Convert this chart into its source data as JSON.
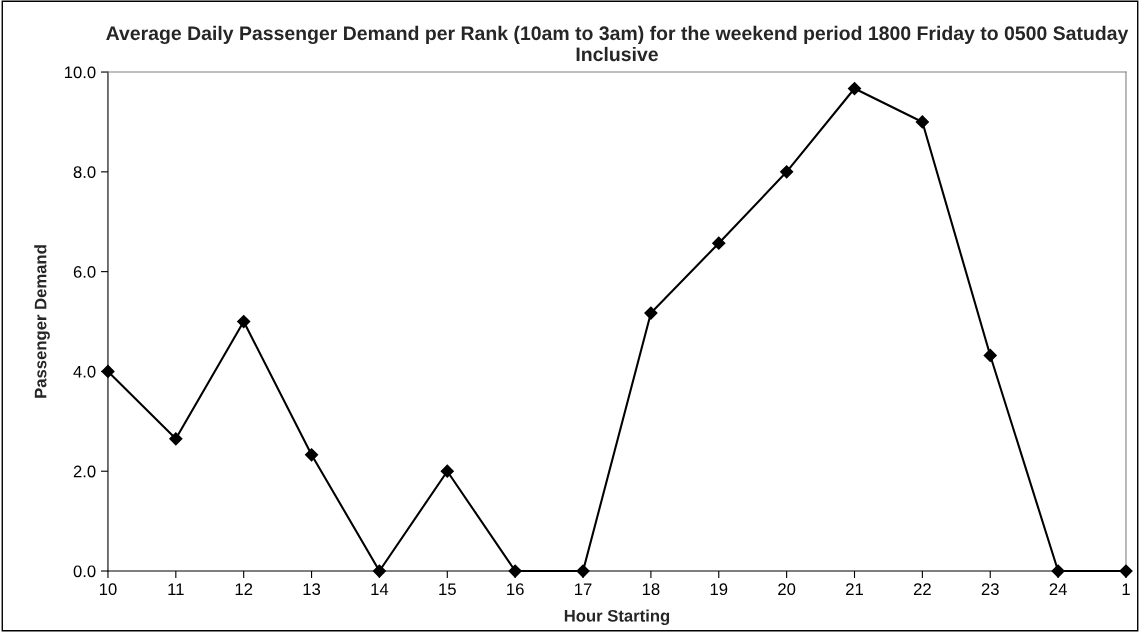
{
  "chart_data": {
    "type": "line",
    "title": "Average Daily Passenger Demand per Rank (10am to 3am) for the weekend period 1800 Friday to 0500 Satuday Inclusive",
    "xlabel": "Hour Starting",
    "ylabel": "Passenger Demand",
    "categories": [
      "10",
      "11",
      "12",
      "13",
      "14",
      "15",
      "16",
      "17",
      "18",
      "19",
      "20",
      "21",
      "22",
      "23",
      "24",
      "1"
    ],
    "series": [
      {
        "color": "#000000",
        "values": [
          4.0,
          2.65,
          5.0,
          2.33,
          0.0,
          2.0,
          0.0,
          0.0,
          5.17,
          6.57,
          8.0,
          9.67,
          9.0,
          4.32,
          0.0,
          0.0
        ]
      }
    ],
    "ylim": [
      0,
      10
    ],
    "yticks": [
      {
        "value": 0,
        "label": "0.0"
      },
      {
        "value": 2,
        "label": "2.0"
      },
      {
        "value": 4,
        "label": "4.0"
      },
      {
        "value": 6,
        "label": "6.0"
      },
      {
        "value": 8,
        "label": "8.0"
      },
      {
        "value": 10,
        "label": "10.0"
      }
    ],
    "marker": "diamond",
    "line_style": "solid",
    "grid": false,
    "legend": false
  }
}
